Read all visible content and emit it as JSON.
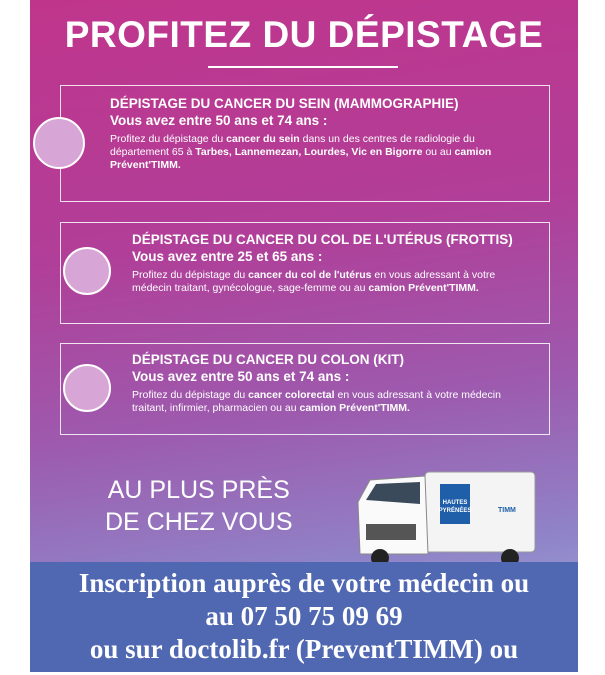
{
  "title": "PROFITEZ DU DÉPISTAGE",
  "sections": [
    {
      "heading": "DÉPISTAGE DU CANCER DU SEIN (MAMMOGRAPHIE)",
      "age": "Vous avez entre 50 ans et 74 ans :",
      "body": [
        {
          "text": "Profitez du dépistage du ",
          "bold": false
        },
        {
          "text": "cancer du sein",
          "bold": true
        },
        {
          "text": " dans un des centres de radiologie du département 65 à ",
          "bold": false
        },
        {
          "text": "Tarbes, Lannemezan, Lourdes, Vic en Bigorre",
          "bold": true
        },
        {
          "text": " ou au ",
          "bold": false
        },
        {
          "text": "camion Prévent'TIMM.",
          "bold": true
        }
      ]
    },
    {
      "heading": "DÉPISTAGE DU CANCER DU COL DE L'UTÉRUS (FROTTIS)",
      "age": "Vous avez entre 25 et 65 ans :",
      "body": [
        {
          "text": "Profitez du dépistage du ",
          "bold": false
        },
        {
          "text": "cancer du col de l'utérus",
          "bold": true
        },
        {
          "text": " en vous adressant à votre médecin traitant, gynécologue, sage-femme ou au ",
          "bold": false
        },
        {
          "text": "camion Prévent'TIMM.",
          "bold": true
        }
      ]
    },
    {
      "heading": "DÉPISTAGE DU CANCER DU COLON (KIT)",
      "age": "Vous avez entre 50 ans et 74 ans :",
      "body": [
        {
          "text": "Profitez du dépistage du ",
          "bold": false
        },
        {
          "text": "cancer colorectal",
          "bold": true
        },
        {
          "text": " en vous adressant à votre médecin traitant, infirmier, pharmacien ou au ",
          "bold": false
        },
        {
          "text": "camion Prévent'TIMM.",
          "bold": true
        }
      ]
    }
  ],
  "slogan": [
    "AU PLUS PRÈS",
    "DE CHEZ VOUS"
  ],
  "truck": {
    "labels": [
      "HAUTES",
      "PYRÉNÉES",
      "TIMM"
    ]
  },
  "footer": [
    "Inscription auprès de votre médecin ou",
    "au 07 50 75 09 69",
    "ou sur doctolib.fr (PreventTIMM) ou"
  ]
}
